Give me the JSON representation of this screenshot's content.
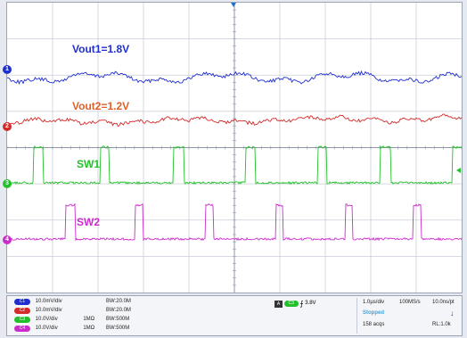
{
  "traces": {
    "vout1_label": "Vout1=1.8V",
    "vout2_label": "Vout2=1.2V",
    "sw1_label": "SW1",
    "sw2_label": "SW2"
  },
  "colors": {
    "ch1": "#1f2fcf",
    "ch2": "#d42a2a",
    "ch3": "#22c02a",
    "ch4": "#cc2ccc",
    "grid": "#c9ced8",
    "grid_center": "#8e96a6"
  },
  "markers": {
    "ch1": "1",
    "ch2": "2",
    "ch3": "3",
    "ch4": "4"
  },
  "channels": [
    {
      "badge": "C1",
      "scale": "10.0mV/div",
      "coupling": "",
      "bw": "BW:20.0M"
    },
    {
      "badge": "C2",
      "scale": "10.0mV/div",
      "coupling": "",
      "bw": "BW:20.0M"
    },
    {
      "badge": "C3",
      "scale": "10.0V/div",
      "coupling": "1MΩ",
      "bw": "BW:500M"
    },
    {
      "badge": "C4",
      "scale": "10.0V/div",
      "coupling": "1MΩ",
      "bw": "BW:500M"
    }
  ],
  "trigger": {
    "mode_badge": "A",
    "channel_badge": "C3",
    "level": "3.8V"
  },
  "timebase": {
    "time_div": "1.0µs/div",
    "sample_rate": "100MS/s",
    "time_per_pt": "10.0ns/pt",
    "status": "Stopped",
    "acqs": "158 acqs",
    "rl": "RL:1.0k"
  }
}
